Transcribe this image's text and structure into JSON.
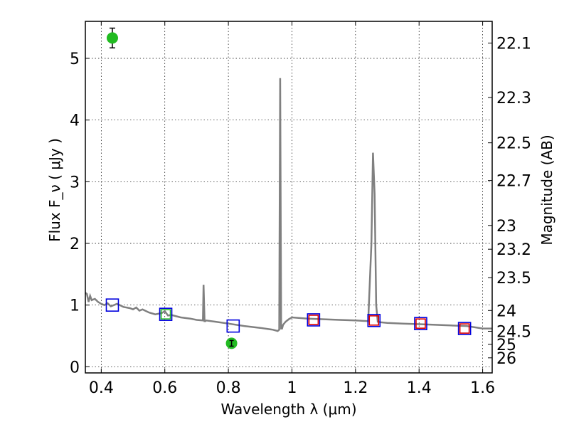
{
  "chart_data": {
    "type": "scatter",
    "x_axis": {
      "label": "Wavelength  λ (μm)",
      "range": [
        0.35,
        1.63
      ],
      "ticks": [
        0.4,
        0.6,
        0.8,
        1.0,
        1.2,
        1.4,
        1.6
      ],
      "tick_labels": [
        "0.4",
        "0.6",
        "0.8",
        "1",
        "1.2",
        "1.4",
        "1.6"
      ]
    },
    "y_axis": {
      "label": "Flux  F_ν  ( μJy )",
      "range": [
        -0.1,
        5.6
      ],
      "ticks": [
        0,
        1,
        2,
        3,
        4,
        5
      ],
      "tick_labels": [
        "0",
        "1",
        "2",
        "3",
        "4",
        "5"
      ]
    },
    "y2_axis": {
      "label": "Magnitude (AB)",
      "scale": "AB magnitude of flux",
      "ticks": [
        22.1,
        22.3,
        22.5,
        22.7,
        23,
        23.2,
        23.5,
        24,
        24.5,
        25,
        26
      ],
      "tick_labels": [
        "22.1",
        "22.3",
        "22.5",
        "22.7",
        "23",
        "23.2",
        "23.5",
        "24",
        "24.5",
        "25",
        "26"
      ]
    },
    "grid": true,
    "model_spectrum": {
      "color": "#808080",
      "x": [
        0.35,
        0.355,
        0.36,
        0.365,
        0.37,
        0.38,
        0.39,
        0.4,
        0.41,
        0.42,
        0.43,
        0.44,
        0.45,
        0.47,
        0.49,
        0.5,
        0.51,
        0.52,
        0.53,
        0.55,
        0.57,
        0.59,
        0.6,
        0.61,
        0.62,
        0.65,
        0.68,
        0.7,
        0.72,
        0.722,
        0.725,
        0.728,
        0.73,
        0.76,
        0.8,
        0.85,
        0.9,
        0.94,
        0.955,
        0.96,
        0.963,
        0.966,
        0.969,
        0.972,
        0.98,
        0.99,
        1.0,
        1.05,
        1.1,
        1.15,
        1.2,
        1.24,
        1.25,
        1.255,
        1.26,
        1.265,
        1.27,
        1.28,
        1.3,
        1.35,
        1.4,
        1.45,
        1.5,
        1.55,
        1.6,
        1.63
      ],
      "y": [
        1.2,
        1.18,
        1.05,
        1.15,
        1.08,
        1.1,
        1.05,
        1.02,
        1.0,
        1.03,
        0.98,
        1.0,
        1.02,
        0.97,
        0.95,
        0.93,
        0.96,
        0.91,
        0.93,
        0.88,
        0.85,
        0.87,
        0.9,
        0.83,
        0.84,
        0.8,
        0.78,
        0.76,
        0.75,
        1.33,
        0.74,
        0.74,
        0.75,
        0.73,
        0.7,
        0.66,
        0.63,
        0.6,
        0.58,
        0.6,
        4.68,
        0.62,
        0.62,
        0.68,
        0.73,
        0.77,
        0.8,
        0.78,
        0.77,
        0.76,
        0.75,
        0.74,
        2.0,
        3.47,
        2.8,
        1.0,
        0.73,
        0.72,
        0.71,
        0.7,
        0.69,
        0.68,
        0.67,
        0.66,
        0.62,
        0.62
      ]
    },
    "series": [
      {
        "marker": "green-circle-with-errorbar",
        "color": "#22bb22",
        "x": [
          0.435,
          0.81
        ],
        "y": [
          5.33,
          0.38
        ],
        "yerr": [
          0.16,
          0.04
        ]
      },
      {
        "marker": "blue-open-square",
        "color": "#0000dd",
        "x": [
          0.435,
          0.603,
          0.815,
          1.068,
          1.258,
          1.405,
          1.543
        ],
        "y": [
          1.0,
          0.85,
          0.66,
          0.76,
          0.75,
          0.7,
          0.62
        ]
      },
      {
        "marker": "green-open-square",
        "color": "#22bb22",
        "x": [
          0.603
        ],
        "y": [
          0.85
        ]
      },
      {
        "marker": "red-open-square",
        "color": "#dd0000",
        "x": [
          1.068,
          1.258,
          1.405,
          1.543
        ],
        "y": [
          0.76,
          0.75,
          0.7,
          0.62
        ]
      }
    ]
  }
}
